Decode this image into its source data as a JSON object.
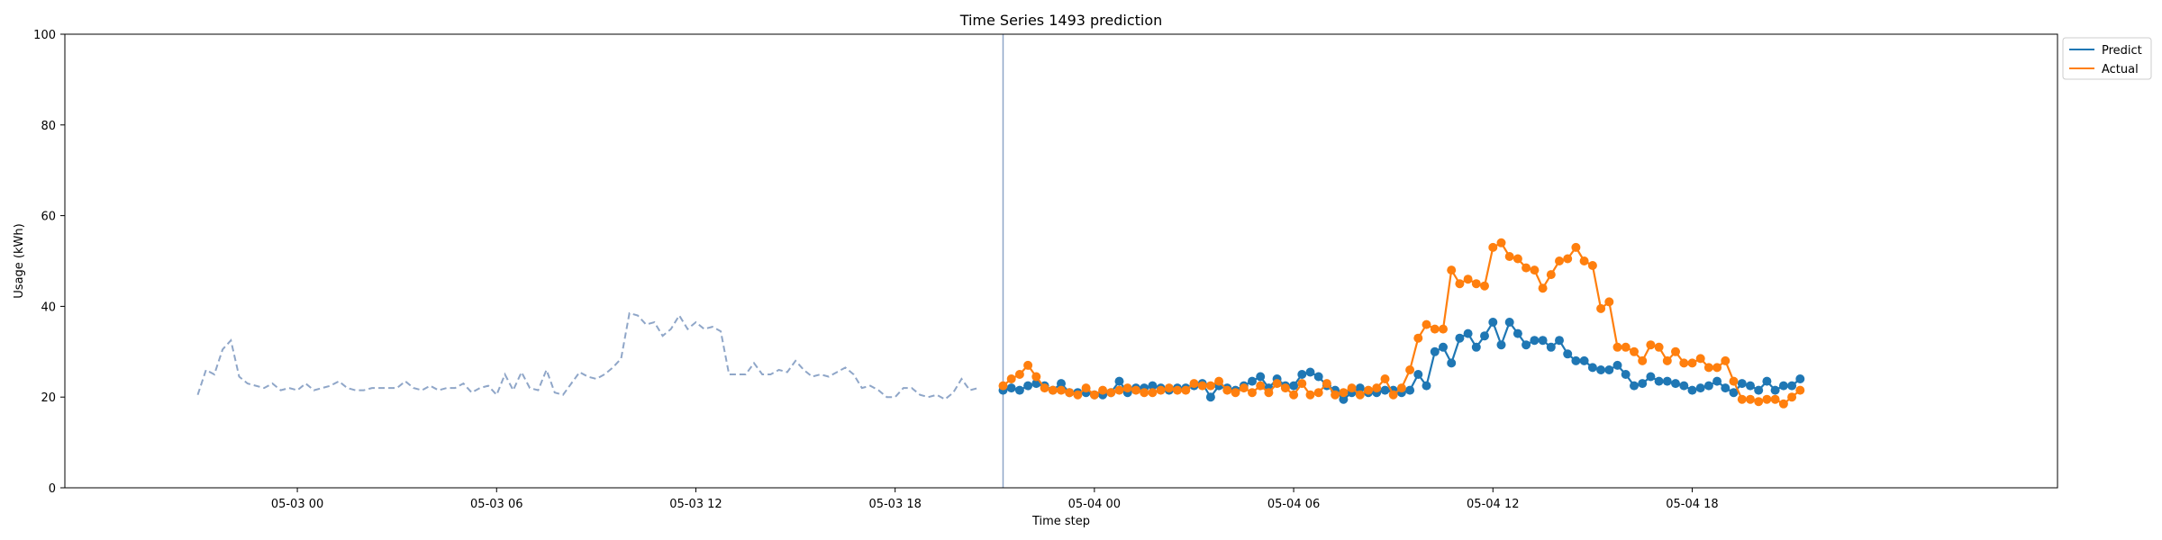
{
  "chart_data": {
    "type": "line",
    "title": "Time Series 1493 prediction",
    "xlabel": "Time step",
    "ylabel": "Usage (kWh)",
    "ylim": [
      0,
      100
    ],
    "yticks": [
      0,
      20,
      40,
      60,
      80,
      100
    ],
    "xlim": [
      "2023-05-02 17:00",
      "2023-05-05 05:00"
    ],
    "xticks": [
      {
        "at": "2023-05-03 00:00",
        "label": "05-03 00"
      },
      {
        "at": "2023-05-03 06:00",
        "label": "05-03 06"
      },
      {
        "at": "2023-05-03 12:00",
        "label": "05-03 12"
      },
      {
        "at": "2023-05-03 18:00",
        "label": "05-03 18"
      },
      {
        "at": "2023-05-04 00:00",
        "label": "05-04 00"
      },
      {
        "at": "2023-05-04 06:00",
        "label": "05-04 06"
      },
      {
        "at": "2023-05-04 12:00",
        "label": "05-04 12"
      },
      {
        "at": "2023-05-04 18:00",
        "label": "05-04 18"
      }
    ],
    "grid": false,
    "legend_position": "top-right (outside plot)",
    "forecast_start": "2023-05-03 21:15",
    "step_minutes": 15,
    "history": {
      "start": "2023-05-02 21:00",
      "color": "#8fa6c8",
      "style": "dashed",
      "values": [
        20.5,
        26,
        25,
        30.5,
        32.5,
        24.5,
        23,
        22.5,
        22,
        23,
        21.5,
        22,
        21.5,
        23,
        21.5,
        22,
        22.5,
        23.5,
        22,
        21.5,
        21.5,
        22,
        22,
        22,
        22,
        23.5,
        22,
        21.5,
        22.5,
        21.5,
        22,
        22,
        23,
        21,
        22,
        22.5,
        20.5,
        25,
        21.5,
        25.5,
        22,
        21.5,
        26,
        21,
        20.5,
        23,
        25.5,
        24.5,
        24,
        25,
        26.5,
        28.5,
        38.5,
        38,
        36,
        36.5,
        33.5,
        35,
        38,
        35,
        36.5,
        35,
        35.5,
        34.5,
        25,
        25,
        25,
        27.5,
        25,
        25,
        26,
        25.5,
        28,
        26,
        24.5,
        25,
        24.5,
        25.5,
        26.5,
        25,
        22,
        22.5,
        21.5,
        20,
        20,
        22,
        22,
        20.5,
        20,
        20.5,
        19.5,
        21,
        24,
        21.5,
        22
      ]
    },
    "series": [
      {
        "name": "Predict",
        "color": "#1f77b4",
        "marker": "circle",
        "start": "2023-05-03 21:15",
        "values": [
          21.5,
          22,
          21.5,
          22.5,
          23,
          22.5,
          21.5,
          23,
          21,
          21,
          21,
          20.5,
          20.5,
          21,
          23.5,
          21,
          22,
          22,
          22.5,
          22,
          21.5,
          22,
          22,
          22.5,
          23,
          20,
          22.5,
          22,
          21.5,
          22.5,
          23.5,
          24.5,
          22,
          24,
          22.5,
          22.5,
          25,
          25.5,
          24.5,
          22.5,
          21.5,
          19.5,
          21,
          22,
          21,
          21,
          21.5,
          21.5,
          21,
          21.5,
          25,
          22.5,
          30,
          31,
          27.5,
          33,
          34,
          31,
          33.5,
          36.5,
          31.5,
          36.5,
          34,
          31.5,
          32.5,
          32.5,
          31,
          32.5,
          29.5,
          28,
          28,
          26.5,
          26,
          26,
          27,
          25,
          22.5,
          23,
          24.5,
          23.5,
          23.5,
          23,
          22.5,
          21.5,
          22,
          22.5,
          23.5,
          22,
          21,
          23,
          22.5,
          21.5,
          23.5,
          21.5,
          22.5,
          22.5,
          24
        ]
      },
      {
        "name": "Actual",
        "color": "#ff7f0e",
        "marker": "circle",
        "start": "2023-05-03 21:15",
        "values": [
          22.5,
          24,
          25,
          27,
          24.5,
          22,
          21.5,
          21.5,
          21,
          20.5,
          22,
          20.5,
          21.5,
          21,
          21.5,
          22,
          21.5,
          21,
          21,
          21.5,
          22,
          21.5,
          21.5,
          23,
          22.5,
          22.5,
          23.5,
          21.5,
          21,
          22,
          21,
          22.5,
          21,
          23,
          22,
          20.5,
          23,
          20.5,
          21,
          23,
          20.5,
          21,
          22,
          20.5,
          21.5,
          22,
          24,
          20.5,
          22,
          26,
          33,
          36,
          35,
          35,
          48,
          45,
          46,
          45,
          44.5,
          53,
          54,
          51,
          50.5,
          48.5,
          48,
          44,
          47,
          50,
          50.5,
          53,
          50,
          49,
          39.5,
          41,
          31,
          31,
          30,
          28,
          31.5,
          31,
          28,
          30,
          27.5,
          27.5,
          28.5,
          26.5,
          26.5,
          28,
          23.5,
          19.5,
          19.5,
          19,
          19.5,
          19.5,
          18.5,
          20,
          21.5
        ]
      }
    ]
  }
}
